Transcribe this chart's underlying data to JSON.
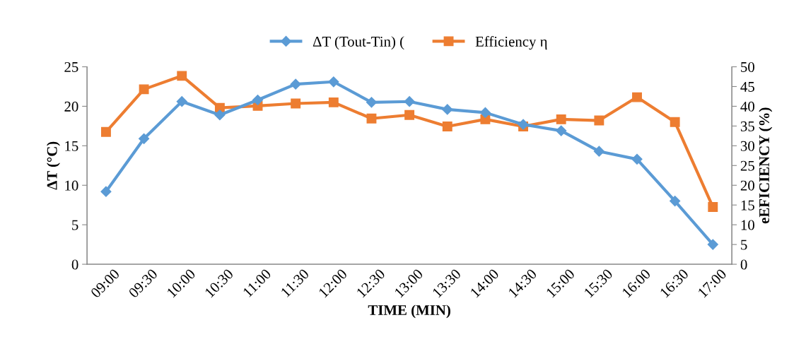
{
  "chart_data": {
    "type": "line",
    "xlabel": "TIME (MIN)",
    "ylabel": "ΔT (°C)",
    "y2label": "eEFICIENCY (%)",
    "categories": [
      "09:00",
      "09:30",
      "10:00",
      "10:30",
      "11:00",
      "11:30",
      "12:00",
      "12:30",
      "13:00",
      "13:30",
      "14:00",
      "14:30",
      "15:00",
      "15:30",
      "16:00",
      "16:30",
      "17:00"
    ],
    "series": [
      {
        "name": "ΔT (Tout-Tin) (",
        "color": "#5b9bd5",
        "marker": "diamond",
        "values": [
          9.2,
          15.9,
          20.6,
          18.9,
          20.8,
          22.8,
          23.1,
          20.5,
          20.6,
          19.6,
          19.2,
          17.7,
          16.9,
          14.3,
          13.3,
          8.0,
          2.5
        ]
      },
      {
        "name": "Efficiency η",
        "color": "#ed7d31",
        "marker": "square",
        "axis": "y2",
        "values": [
          33.5,
          44.3,
          47.7,
          39.6,
          40.1,
          40.7,
          41.0,
          36.9,
          37.8,
          34.9,
          36.7,
          34.9,
          36.7,
          36.4,
          42.3,
          36.0,
          14.5
        ]
      }
    ],
    "ylim": [
      0,
      25
    ],
    "yticks": [
      0,
      5,
      10,
      15,
      20,
      25
    ],
    "y2lim": [
      0,
      50
    ],
    "y2ticks": [
      0,
      5,
      10,
      15,
      20,
      25,
      30,
      35,
      40,
      45,
      50
    ],
    "grid": false,
    "legend": "top"
  }
}
